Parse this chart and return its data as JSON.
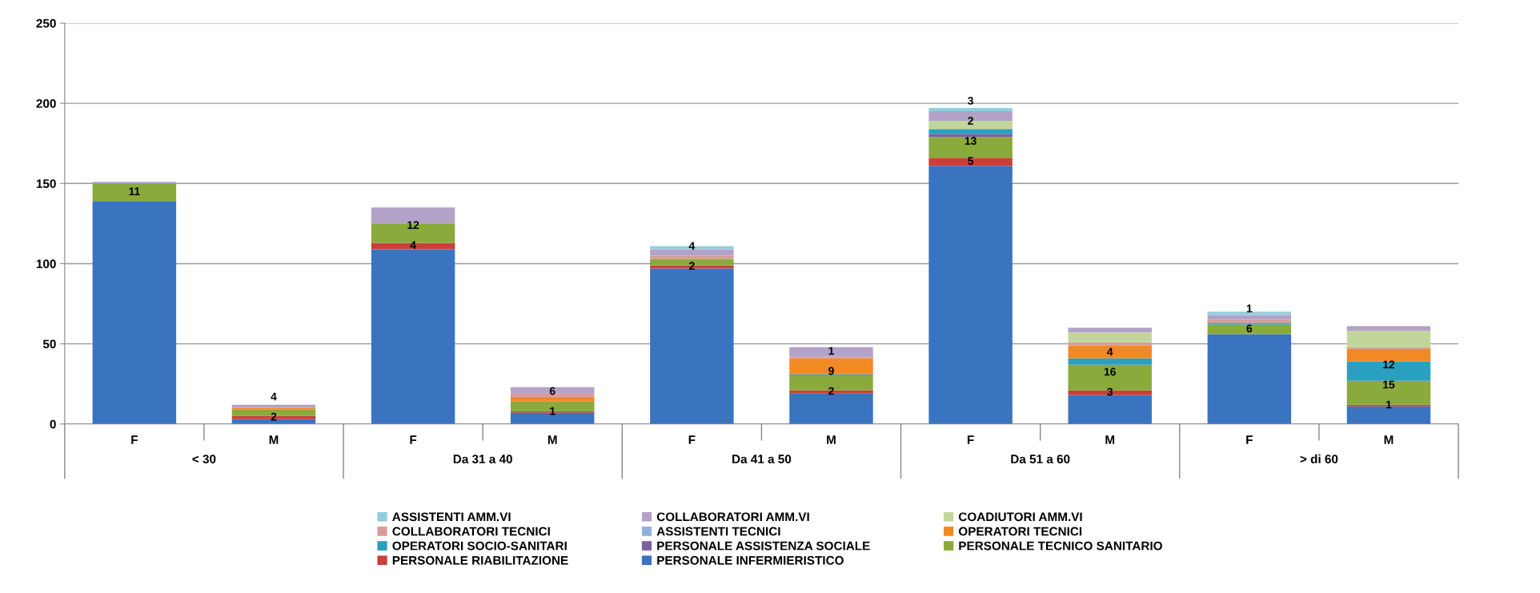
{
  "chart_data": {
    "type": "bar",
    "stacked": true,
    "categories": [
      "F",
      "M",
      "F",
      "M",
      "F",
      "M",
      "F",
      "M",
      "F",
      "M"
    ],
    "annotations": [
      "< 30",
      "Da 31 a 40",
      "Da 41 a 50",
      "Da 51 a 60",
      "> di 60"
    ],
    "ylim": [
      0,
      250
    ],
    "yticks": [
      0,
      50,
      100,
      150,
      200,
      250
    ],
    "grid": "y",
    "legend": "bottom",
    "series": [
      {
        "name": "PERSONALE INFERMIERISTICO",
        "color": "#3a74c0",
        "values": [
          139,
          3,
          109,
          7,
          97,
          19,
          161,
          18,
          56,
          11
        ],
        "value_labels": [
          null,
          null,
          null,
          null,
          null,
          null,
          null,
          null,
          null,
          null
        ]
      },
      {
        "name": "PERSONALE RIABILITAZIONE",
        "color": "#c8403c",
        "values": [
          0,
          2,
          4,
          1,
          2,
          2,
          5,
          3,
          0,
          1
        ],
        "value_labels": [
          null,
          "2",
          "4",
          "1",
          "2",
          "2",
          "5",
          "3",
          null,
          "1"
        ]
      },
      {
        "name": "PERSONALE TECNICO SANITARIO",
        "color": "#8aaa3c",
        "values": [
          11,
          4,
          12,
          6,
          4,
          9,
          13,
          16,
          6,
          15
        ],
        "value_labels": [
          "11",
          "4",
          "12",
          "6",
          "4",
          "9",
          "13",
          "16",
          "6",
          "15"
        ]
      },
      {
        "name": "PERSONALE ASSISTENZA SOCIALE",
        "color": "#7d60a0",
        "values": [
          0,
          0,
          0,
          0,
          0,
          0,
          2,
          0,
          0,
          0
        ],
        "value_labels": [
          null,
          null,
          null,
          null,
          null,
          null,
          "2",
          null,
          null,
          null
        ]
      },
      {
        "name": "OPERATORI SOCIO-SANITARI",
        "color": "#2aa0c0",
        "values": [
          0,
          0,
          0,
          0,
          0,
          1,
          3,
          4,
          1,
          12
        ],
        "value_labels": [
          null,
          null,
          null,
          null,
          null,
          "1",
          "3",
          "4",
          "1",
          "12"
        ]
      },
      {
        "name": "OPERATORI TECNICI",
        "color": "#f08a24",
        "values": [
          0,
          1,
          0,
          3,
          0,
          10,
          0,
          8,
          0,
          8
        ],
        "value_labels": [
          null,
          null,
          null,
          null,
          null,
          null,
          null,
          null,
          null,
          null
        ]
      },
      {
        "name": "ASSISTENTI TECNICI",
        "color": "#8fb0dc",
        "values": [
          0,
          0,
          0,
          0,
          0,
          0,
          0,
          0,
          0,
          0
        ],
        "value_labels": [
          null,
          null,
          null,
          null,
          null,
          null,
          null,
          null,
          null,
          null
        ]
      },
      {
        "name": "COLLABORATORI TECNICI",
        "color": "#d89a9a",
        "values": [
          0,
          0,
          0,
          2,
          2,
          1,
          0,
          2,
          2,
          1
        ],
        "value_labels": [
          null,
          null,
          null,
          null,
          null,
          null,
          null,
          null,
          null,
          null
        ]
      },
      {
        "name": "COADIUTORI AMM.VI",
        "color": "#c2d69b",
        "values": [
          0,
          0,
          0,
          0,
          0,
          0,
          5,
          6,
          0,
          10
        ],
        "value_labels": [
          null,
          null,
          null,
          null,
          null,
          null,
          null,
          null,
          null,
          null
        ]
      },
      {
        "name": "COLLABORATORI AMM.VI",
        "color": "#b3a2c7",
        "values": [
          1,
          2,
          10,
          4,
          4,
          6,
          6,
          3,
          3,
          3
        ],
        "value_labels": [
          null,
          null,
          null,
          null,
          null,
          null,
          null,
          null,
          null,
          null
        ]
      },
      {
        "name": "ASSISTENTI AMM.VI",
        "color": "#93cddd",
        "values": [
          0,
          0,
          0,
          0,
          2,
          0,
          2,
          0,
          2,
          0
        ],
        "value_labels": [
          null,
          null,
          null,
          null,
          null,
          null,
          null,
          null,
          null,
          null
        ]
      }
    ]
  }
}
